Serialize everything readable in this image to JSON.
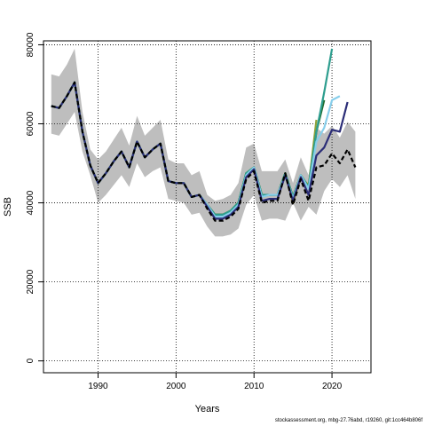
{
  "chart_data": {
    "type": "line",
    "xlabel": "Years",
    "ylabel": "SSB",
    "xlim": [
      1983,
      2025
    ],
    "ylim": [
      -3000,
      81000
    ],
    "x_ticks": [
      1990,
      2000,
      2010,
      2020
    ],
    "y_ticks": [
      0,
      20000,
      40000,
      60000,
      80000
    ],
    "grid": "dotted",
    "confidence_band": {
      "color": "#bebebe",
      "x": [
        1984,
        1985,
        1986,
        1987,
        1988,
        1989,
        1990,
        1991,
        1992,
        1993,
        1994,
        1995,
        1996,
        1997,
        1998,
        1999,
        2000,
        2001,
        2002,
        2003,
        2004,
        2005,
        2006,
        2007,
        2008,
        2009,
        2010,
        2011,
        2012,
        2013,
        2014,
        2015,
        2016,
        2017,
        2018,
        2019,
        2020,
        2021,
        2022,
        2023
      ],
      "lower": [
        57500,
        57000,
        60000,
        63000,
        53000,
        47000,
        40000,
        42000,
        44500,
        47000,
        44000,
        50000,
        46500,
        48000,
        49000,
        41000,
        40500,
        40000,
        37000,
        37500,
        34000,
        31500,
        31500,
        32000,
        33500,
        39500,
        42000,
        35500,
        36000,
        36000,
        35500,
        40000,
        35500,
        39000,
        37000,
        43000,
        46000,
        44000,
        47000,
        41000
      ],
      "upper": [
        72500,
        72000,
        75000,
        79000,
        63000,
        53500,
        51000,
        53000,
        56000,
        59000,
        54500,
        62000,
        57000,
        59000,
        61000,
        51000,
        50000,
        50000,
        47000,
        48000,
        42000,
        40500,
        41000,
        42000,
        45000,
        54000,
        55000,
        48000,
        48000,
        48000,
        51000,
        45000,
        51500,
        47000,
        59000,
        57500,
        59500,
        56500,
        60500,
        58000
      ]
    },
    "series": [
      {
        "color": "#000000",
        "dashed": true,
        "x": [
          1984,
          1985,
          1986,
          1987,
          1988,
          1989,
          1990,
          1991,
          1992,
          1993,
          1994,
          1995,
          1996,
          1997,
          1998,
          1999,
          2000,
          2001,
          2002,
          2003,
          2004,
          2005,
          2006,
          2007,
          2008,
          2009,
          2010,
          2011,
          2012,
          2013,
          2014,
          2015,
          2016,
          2017,
          2018,
          2019,
          2020,
          2021,
          2022,
          2023
        ],
        "values": [
          64500,
          64000,
          67000,
          70500,
          58000,
          49500,
          45000,
          47500,
          50500,
          53000,
          49000,
          55500,
          51500,
          53500,
          55000,
          45500,
          45000,
          45000,
          41500,
          42000,
          38500,
          35500,
          35500,
          36500,
          38500,
          46000,
          48000,
          40000,
          40500,
          40500,
          47500,
          39500,
          46000,
          40500,
          49000,
          49500,
          52500,
          50000,
          53500,
          49000
        ]
      },
      {
        "color": "#2b2d77",
        "x": [
          1984,
          1985,
          1986,
          1987,
          1988,
          1989,
          1990,
          1991,
          1992,
          1993,
          1994,
          1995,
          1996,
          1997,
          1998,
          1999,
          2000,
          2001,
          2002,
          2003,
          2004,
          2005,
          2006,
          2007,
          2008,
          2009,
          2010,
          2011,
          2012,
          2013,
          2014,
          2015,
          2016,
          2017,
          2018,
          2019,
          2020,
          2021,
          2022
        ],
        "values": [
          64500,
          64000,
          67000,
          70500,
          58000,
          49500,
          45000,
          47500,
          50500,
          53000,
          49000,
          55500,
          51500,
          53500,
          55000,
          45500,
          45000,
          45000,
          41500,
          42000,
          39000,
          36000,
          36000,
          37000,
          39000,
          46500,
          48500,
          40500,
          41000,
          41000,
          47000,
          40500,
          46500,
          42000,
          52000,
          54000,
          58500,
          58000,
          65500
        ]
      },
      {
        "color": "#87ceeb",
        "x": [
          1984,
          1985,
          1986,
          1987,
          1988,
          1989,
          1990,
          1991,
          1992,
          1993,
          1994,
          1995,
          1996,
          1997,
          1998,
          1999,
          2000,
          2001,
          2002,
          2003,
          2004,
          2005,
          2006,
          2007,
          2008,
          2009,
          2010,
          2011,
          2012,
          2013,
          2014,
          2015,
          2016,
          2017,
          2018,
          2019,
          2020,
          2021
        ],
        "values": [
          64500,
          64000,
          67000,
          70500,
          58000,
          49500,
          45000,
          47500,
          50500,
          53000,
          49000,
          55500,
          51500,
          53500,
          55000,
          45500,
          45000,
          45000,
          41500,
          42000,
          39500,
          36500,
          36500,
          37500,
          39500,
          47000,
          49000,
          41500,
          42000,
          42000,
          47000,
          41000,
          47000,
          43500,
          55500,
          59000,
          66000,
          67000
        ]
      },
      {
        "color": "#2e9e8f",
        "x": [
          1984,
          1985,
          1986,
          1987,
          1988,
          1989,
          1990,
          1991,
          1992,
          1993,
          1994,
          1995,
          1996,
          1997,
          1998,
          1999,
          2000,
          2001,
          2002,
          2003,
          2004,
          2005,
          2006,
          2007,
          2008,
          2009,
          2010,
          2011,
          2012,
          2013,
          2014,
          2015,
          2016,
          2017,
          2018,
          2019,
          2020
        ],
        "values": [
          64500,
          64000,
          67000,
          70500,
          58000,
          49500,
          45000,
          47500,
          50500,
          53000,
          49000,
          55500,
          51500,
          53500,
          55000,
          45500,
          45000,
          45000,
          41500,
          42000,
          39500,
          37000,
          37000,
          38000,
          40000,
          47500,
          49000,
          42000,
          42000,
          42000,
          47500,
          41500,
          47000,
          44000,
          58000,
          68000,
          79000
        ]
      },
      {
        "color": "#1f6b2e",
        "x": [
          1984,
          1985,
          1986,
          1987,
          1988,
          1989,
          1990,
          1991,
          1992,
          1993,
          1994,
          1995,
          1996,
          1997,
          1998,
          1999,
          2000,
          2001,
          2002,
          2003,
          2004,
          2005,
          2006,
          2007,
          2008,
          2009,
          2010,
          2011,
          2012,
          2013,
          2014,
          2015,
          2016,
          2017,
          2018,
          2019
        ],
        "values": [
          64500,
          64000,
          67000,
          70500,
          58000,
          49500,
          45000,
          47500,
          50500,
          53000,
          49000,
          55500,
          51500,
          53500,
          55000,
          45500,
          45000,
          45000,
          41500,
          42000,
          39500,
          37000,
          37000,
          38000,
          40000,
          47500,
          49000,
          42000,
          42000,
          42000,
          47500,
          41500,
          47000,
          44000,
          58000,
          66000
        ]
      },
      {
        "color": "#8fa33c",
        "x": [
          1984,
          1985,
          1986,
          1987,
          1988,
          1989,
          1990,
          1991,
          1992,
          1993,
          1994,
          1995,
          1996,
          1997,
          1998,
          1999,
          2000,
          2001,
          2002,
          2003,
          2004,
          2005,
          2006,
          2007,
          2008,
          2009,
          2010,
          2011,
          2012,
          2013,
          2014,
          2015,
          2016,
          2017,
          2018
        ],
        "values": [
          64500,
          64000,
          67000,
          70500,
          58000,
          49500,
          45000,
          47500,
          50500,
          53000,
          49000,
          55500,
          51500,
          53500,
          55000,
          45500,
          45000,
          45000,
          41500,
          42000,
          39500,
          37000,
          37000,
          38000,
          40000,
          47500,
          49000,
          42000,
          42000,
          42000,
          47500,
          41500,
          47000,
          44000,
          61000
        ]
      },
      {
        "color": "#b8a11f",
        "x": [
          1984,
          1985,
          1986,
          1987,
          1988,
          1989,
          1990,
          1991,
          1992,
          1993,
          1994,
          1995,
          1996,
          1997,
          1998,
          1999,
          2000,
          2001,
          2002,
          2003,
          2004,
          2005,
          2006,
          2007,
          2008,
          2009,
          2010,
          2011,
          2012,
          2013,
          2014,
          2015,
          2016,
          2017
        ],
        "values": [
          64500,
          64000,
          67000,
          70500,
          58000,
          49500,
          45000,
          47500,
          50500,
          53000,
          49000,
          55500,
          51500,
          53500,
          55000,
          45500,
          45000,
          45000,
          41500,
          42000,
          39500,
          37000,
          37000,
          38000,
          40000,
          47000,
          49000,
          41500,
          42000,
          42000,
          47500,
          40000,
          46500,
          44500
        ]
      },
      {
        "color": "#3a8f3a",
        "x": [
          1984,
          1985,
          1986,
          1987,
          1988,
          1989,
          1990,
          1991,
          1992,
          1993,
          1994,
          1995,
          1996,
          1997,
          1998,
          1999,
          2000,
          2001,
          2002,
          2003,
          2004,
          2005,
          2006,
          2007,
          2008,
          2009,
          2010,
          2011,
          2012,
          2013,
          2014,
          2015,
          2016,
          2017
        ],
        "values": [
          64500,
          64000,
          67000,
          70500,
          58000,
          49500,
          45000,
          47500,
          50500,
          53000,
          49000,
          55500,
          51500,
          53500,
          55000,
          45500,
          45000,
          45000,
          41500,
          42000,
          39500,
          37000,
          37000,
          38000,
          40000,
          47500,
          49000,
          42000,
          42000,
          42000,
          47500,
          41500,
          47000,
          44000
        ]
      }
    ]
  },
  "credit": "stockassessment.org, mbg-27.76abd, r19260, git:1cc464b806f"
}
